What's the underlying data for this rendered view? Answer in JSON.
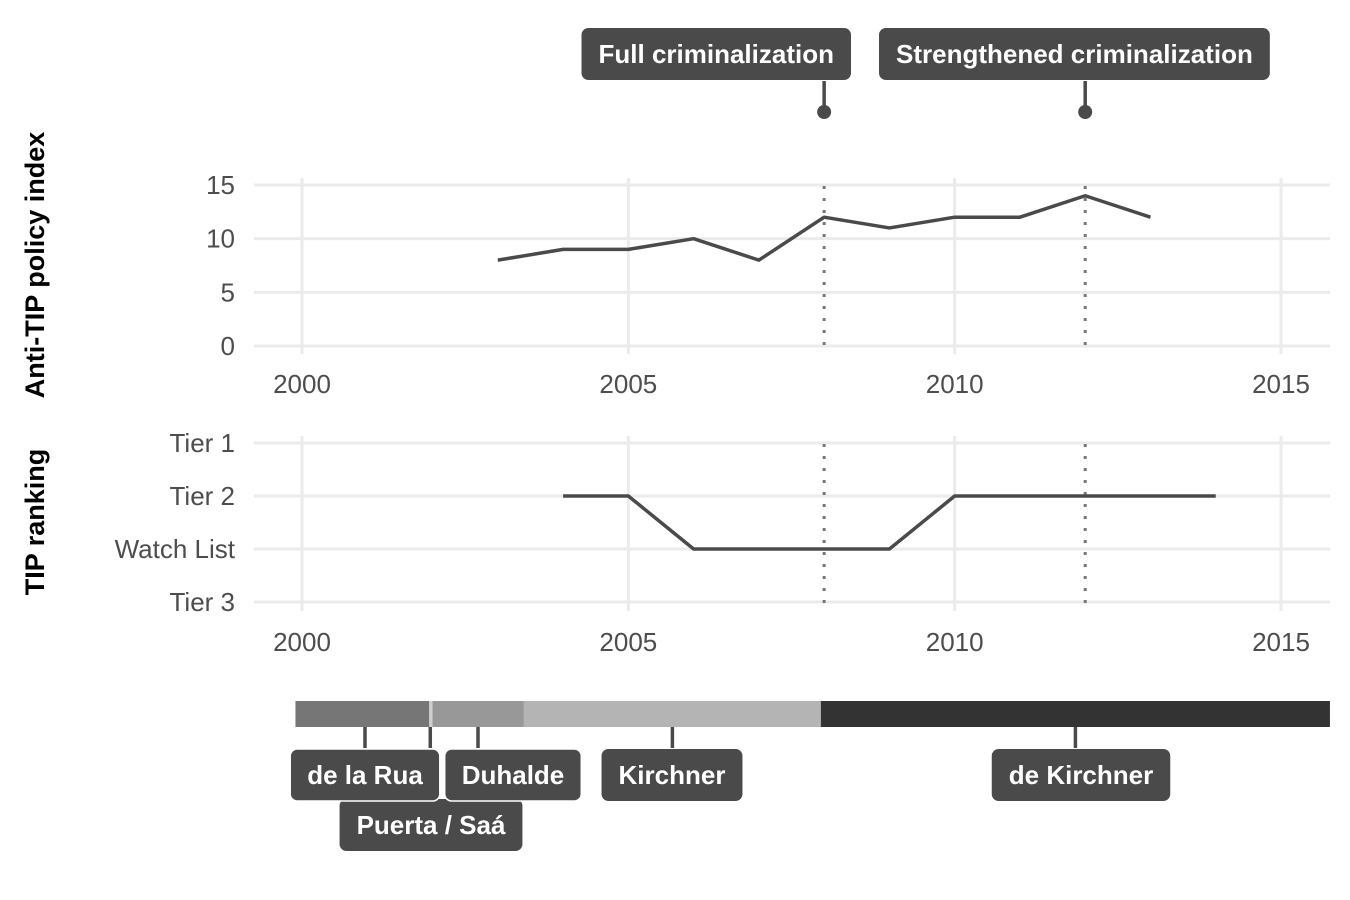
{
  "chart_data": [
    {
      "type": "line",
      "ylabel": "Anti-TIP policy index",
      "xlabel": "",
      "xlim": [
        2000,
        2015
      ],
      "ylim": [
        0,
        15
      ],
      "x_ticks": [
        "2000",
        "2005",
        "2010",
        "2015"
      ],
      "y_ticks": [
        "0",
        "5",
        "10",
        "15"
      ],
      "grid": true,
      "series": [
        {
          "x": [
            2003,
            2004,
            2005,
            2006,
            2007,
            2008,
            2009,
            2010,
            2011,
            2012,
            2013
          ],
          "values": [
            8,
            9,
            9,
            10,
            8,
            12,
            11,
            12,
            12,
            14,
            12
          ]
        }
      ],
      "annotations": [
        {
          "x": 2008,
          "label": "Full criminalization"
        },
        {
          "x": 2012,
          "label": "Strengthened criminalization"
        }
      ]
    },
    {
      "type": "line",
      "ylabel": "TIP ranking",
      "xlabel": "",
      "xlim": [
        2000,
        2015
      ],
      "x_ticks": [
        "2000",
        "2005",
        "2010",
        "2015"
      ],
      "categories": [
        "Tier 1",
        "Tier 2",
        "Watch List",
        "Tier 3"
      ],
      "grid": true,
      "series": [
        {
          "x": [
            2004,
            2005,
            2006,
            2007,
            2008,
            2009,
            2010,
            2011,
            2012,
            2013,
            2014
          ],
          "values": [
            "Tier 2",
            "Tier 2",
            "Watch List",
            "Watch List",
            "Watch List",
            "Watch List",
            "Tier 2",
            "Tier 2",
            "Tier 2",
            "Tier 2",
            "Tier 2"
          ]
        }
      ]
    },
    {
      "type": "timeline",
      "periods": [
        {
          "label": "de la Rua",
          "start": 1999.9,
          "end": 2001.95,
          "color": "#767676"
        },
        {
          "label": "Puerta / Saá",
          "start": 2001.95,
          "end": 2002.0,
          "color": "#cfcfcf"
        },
        {
          "label": "Duhalde",
          "start": 2002.0,
          "end": 2003.4,
          "color": "#989898"
        },
        {
          "label": "Kirchner",
          "start": 2003.4,
          "end": 2007.95,
          "color": "#b4b4b4"
        },
        {
          "label": "de Kirchner",
          "start": 2007.95,
          "end": 2015.75,
          "color": "#333333"
        }
      ]
    }
  ],
  "colors": {
    "series": "#4a4a4a",
    "grid": "#ebebeb",
    "label_fill": "#4a4a4a",
    "label_text": "#ffffff"
  }
}
